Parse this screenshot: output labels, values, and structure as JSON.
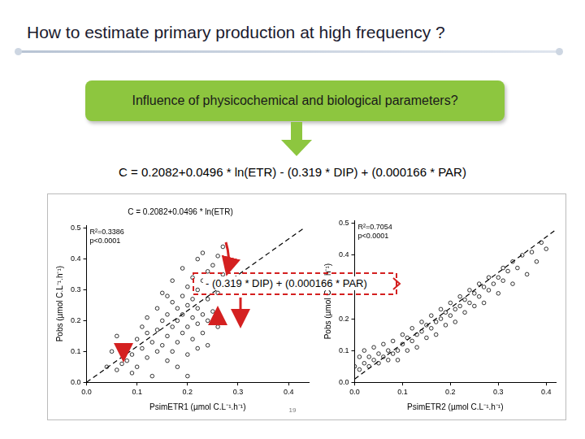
{
  "slide": {
    "title": "How to estimate primary production at high frequency ?",
    "box": "Influence of physicochemical and biological parameters?",
    "equation": "C = 0.2082+0.0496 * ln(ETR) - (0.319 * DIP) + (0.000166 * PAR)",
    "annotation": "- (0.319 * DIP) + (0.000166 * PAR)",
    "page_number": "19"
  },
  "chart_data": [
    {
      "type": "scatter",
      "title": "C = 0.2082+0.0496 * ln(ETR)",
      "x_label": "PsimETR1 (µmol C.L⁻¹.h⁻¹)",
      "y_label": "Pobs (µmol C.L⁻¹.h⁻¹)",
      "annotations": [
        "R²=0.3386",
        "p<0.0001"
      ],
      "xlim": [
        0,
        0.44
      ],
      "ylim": [
        0,
        0.51
      ],
      "xticks": [
        {
          "value": 0,
          "label": "0.0"
        },
        0.1,
        0.2,
        0.3,
        0.4
      ],
      "yticks": [
        {
          "value": 0,
          "label": "0.0"
        },
        0.1,
        0.2,
        0.3,
        0.4,
        0.5
      ],
      "grid": false,
      "series": [
        {
          "color": "#000000",
          "marker": "circle_open",
          "x": [
            0.04,
            0.05,
            0.06,
            0.07,
            0.08,
            0.09,
            0.09,
            0.1,
            0.1,
            0.11,
            0.11,
            0.12,
            0.12,
            0.13,
            0.13,
            0.14,
            0.14,
            0.14,
            0.15,
            0.15,
            0.15,
            0.16,
            0.16,
            0.16,
            0.17,
            0.17,
            0.17,
            0.17,
            0.18,
            0.18,
            0.18,
            0.18,
            0.19,
            0.19,
            0.19,
            0.19,
            0.2,
            0.2,
            0.2,
            0.2,
            0.21,
            0.21,
            0.21,
            0.21,
            0.22,
            0.22,
            0.22,
            0.22,
            0.22,
            0.23,
            0.23,
            0.23,
            0.23,
            0.24,
            0.24,
            0.24,
            0.25,
            0.25,
            0.25,
            0.26,
            0.26,
            0.27,
            0.27,
            0.12,
            0.08,
            0.06,
            0.2,
            0.16,
            0.24,
            0.26
          ],
          "values": [
            0.05,
            0.1,
            0.15,
            0.06,
            0.12,
            0.03,
            0.09,
            0.05,
            0.14,
            0.11,
            0.18,
            0.08,
            0.21,
            0.13,
            0.02,
            0.1,
            0.17,
            0.24,
            0.12,
            0.2,
            0.29,
            0.07,
            0.15,
            0.22,
            0.1,
            0.18,
            0.26,
            0.33,
            0.13,
            0.2,
            0.24,
            0.05,
            0.16,
            0.22,
            0.28,
            0.37,
            0.09,
            0.18,
            0.25,
            0.31,
            0.14,
            0.21,
            0.27,
            0.34,
            0.11,
            0.19,
            0.24,
            0.3,
            0.4,
            0.16,
            0.22,
            0.33,
            0.42,
            0.2,
            0.27,
            0.36,
            0.23,
            0.31,
            0.38,
            0.29,
            0.41,
            0.35,
            0.44,
            0.16,
            0.07,
            0.04,
            0.02,
            0.28,
            0.12,
            0.18
          ]
        },
        {
          "color": "#000000",
          "type": "line",
          "line_style": "dashed",
          "x": [
            0,
            0.43
          ],
          "values": [
            0,
            0.5
          ]
        }
      ]
    },
    {
      "type": "scatter",
      "x_label": "PsimETR2 (µmol C.L⁻¹.h⁻¹)",
      "y_label": "Pobs (µmol C.L⁻¹.h⁻¹)",
      "annotations": [
        "R²=0.7054",
        "p<0.0001"
      ],
      "xlim": [
        0,
        0.42
      ],
      "ylim": [
        0,
        0.51
      ],
      "xticks": [
        {
          "value": 0,
          "label": "0.0"
        },
        0.1,
        0.2,
        0.3,
        0.4
      ],
      "yticks": [
        {
          "value": 0,
          "label": "0.0"
        },
        0.1,
        0.2,
        0.3,
        0.4,
        0.5
      ],
      "grid": false,
      "series": [
        {
          "color": "#000000",
          "marker": "circle_open",
          "x": [
            0.0,
            0.01,
            0.01,
            0.02,
            0.02,
            0.03,
            0.03,
            0.04,
            0.04,
            0.05,
            0.05,
            0.06,
            0.06,
            0.07,
            0.07,
            0.08,
            0.08,
            0.09,
            0.09,
            0.1,
            0.1,
            0.11,
            0.11,
            0.12,
            0.12,
            0.13,
            0.13,
            0.14,
            0.14,
            0.15,
            0.15,
            0.16,
            0.16,
            0.17,
            0.17,
            0.18,
            0.18,
            0.19,
            0.19,
            0.2,
            0.2,
            0.21,
            0.21,
            0.22,
            0.22,
            0.23,
            0.23,
            0.24,
            0.24,
            0.25,
            0.25,
            0.26,
            0.26,
            0.27,
            0.27,
            0.28,
            0.28,
            0.29,
            0.3,
            0.3,
            0.31,
            0.31,
            0.32,
            0.33,
            0.33,
            0.34,
            0.35,
            0.36,
            0.37,
            0.38,
            0.39,
            0.4
          ],
          "values": [
            0.05,
            0.04,
            0.08,
            0.06,
            0.1,
            0.05,
            0.08,
            0.07,
            0.11,
            0.06,
            0.09,
            0.08,
            0.12,
            0.07,
            0.1,
            0.09,
            0.13,
            0.1,
            0.07,
            0.12,
            0.15,
            0.1,
            0.14,
            0.13,
            0.17,
            0.15,
            0.11,
            0.16,
            0.19,
            0.14,
            0.18,
            0.17,
            0.21,
            0.19,
            0.15,
            0.2,
            0.23,
            0.18,
            0.22,
            0.21,
            0.25,
            0.23,
            0.19,
            0.24,
            0.27,
            0.22,
            0.26,
            0.25,
            0.29,
            0.24,
            0.28,
            0.27,
            0.31,
            0.3,
            0.25,
            0.29,
            0.33,
            0.31,
            0.28,
            0.33,
            0.32,
            0.36,
            0.35,
            0.31,
            0.38,
            0.36,
            0.4,
            0.34,
            0.41,
            0.38,
            0.44,
            0.42
          ]
        },
        {
          "color": "#000000",
          "type": "line",
          "line_style": "dashed",
          "x": [
            0,
            0.42
          ],
          "values": [
            0.01,
            0.48
          ]
        }
      ]
    }
  ]
}
